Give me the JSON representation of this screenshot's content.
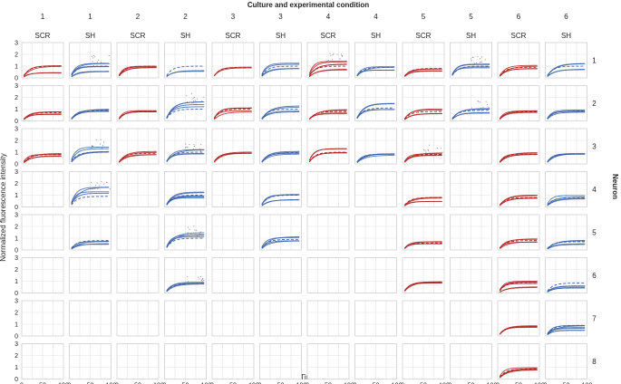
{
  "chart_data": {
    "type": "line",
    "title": "Culture and experimental condition",
    "xlabel": "Time",
    "ylabel": "Normalized fluorescence intensity",
    "right_label": "Neuron",
    "xlim": [
      0,
      100
    ],
    "ylim": [
      0,
      3
    ],
    "x_ticks": [
      0,
      50,
      100
    ],
    "x_tick_labels": [
      "0",
      "50",
      "100"
    ],
    "y_ticks": [
      0,
      1,
      2,
      3
    ],
    "y_tick_labels": [
      "0",
      "1",
      "2",
      "3"
    ],
    "grid": true,
    "colors": {
      "SCR": "#b22222",
      "SH": "#3a5fa8",
      "grid": "#e3e3e3",
      "panel_border": "#cfcfcf",
      "dots": "#8a8a8a"
    },
    "columns": [
      {
        "culture": "1",
        "condition": "SCR"
      },
      {
        "culture": "1",
        "condition": "SH"
      },
      {
        "culture": "2",
        "condition": "SCR"
      },
      {
        "culture": "2",
        "condition": "SH"
      },
      {
        "culture": "3",
        "condition": "SCR"
      },
      {
        "culture": "3",
        "condition": "SH"
      },
      {
        "culture": "4",
        "condition": "SCR"
      },
      {
        "culture": "4",
        "condition": "SH"
      },
      {
        "culture": "5",
        "condition": "SCR"
      },
      {
        "culture": "5",
        "condition": "SH"
      },
      {
        "culture": "6",
        "condition": "SCR"
      },
      {
        "culture": "6",
        "condition": "SH"
      }
    ],
    "rows": [
      "1",
      "2",
      "3",
      "4",
      "5",
      "6",
      "7",
      "8"
    ],
    "curve_model": "y = plateau * (1 - exp(-x / 15))",
    "panels": [
      {
        "row": 1,
        "col": 1,
        "plateau_means": [
          0.45,
          1.05
        ],
        "dashed_plateau": 1.0
      },
      {
        "row": 1,
        "col": 2,
        "plateau_means": [
          0.55,
          0.95,
          1.2
        ],
        "dashed_plateau": 1.0,
        "scatter": true
      },
      {
        "row": 1,
        "col": 3,
        "plateau_means": [
          0.85,
          1.0
        ],
        "dashed_plateau": 1.0
      },
      {
        "row": 1,
        "col": 4,
        "plateau_means": [
          0.6
        ],
        "dashed_plateau": 1.0
      },
      {
        "row": 1,
        "col": 5,
        "plateau_means": [
          0.85
        ],
        "dashed_plateau": 0.9
      },
      {
        "row": 1,
        "col": 6,
        "plateau_means": [
          0.8,
          1.2
        ],
        "dashed_plateau": 1.0
      },
      {
        "row": 1,
        "col": 7,
        "plateau_means": [
          0.7,
          1.1,
          1.4
        ],
        "dashed_plateau": 1.0,
        "scatter": true
      },
      {
        "row": 1,
        "col": 8,
        "plateau_means": [
          0.7,
          0.9
        ],
        "dashed_plateau": 0.9
      },
      {
        "row": 1,
        "col": 9,
        "plateau_means": [
          0.6,
          0.8
        ],
        "dashed_plateau": 0.8
      },
      {
        "row": 1,
        "col": 10,
        "plateau_means": [
          0.9,
          1.15
        ],
        "dashed_plateau": 1.0,
        "scatter": true
      },
      {
        "row": 1,
        "col": 11,
        "plateau_means": [
          0.75,
          1.0
        ],
        "dashed_plateau": 0.9
      },
      {
        "row": 1,
        "col": 12,
        "plateau_means": [
          0.7,
          1.2
        ],
        "dashed_plateau": 1.0
      },
      {
        "row": 2,
        "col": 1,
        "plateau_means": [
          0.55,
          0.75
        ],
        "dashed_plateau": 0.7
      },
      {
        "row": 2,
        "col": 2,
        "plateau_means": [
          0.8,
          1.0
        ],
        "dashed_plateau": 0.9
      },
      {
        "row": 2,
        "col": 3,
        "plateau_means": [
          0.75,
          0.9
        ],
        "dashed_plateau": 0.8
      },
      {
        "row": 2,
        "col": 4,
        "plateau_means": [
          1.3,
          1.7
        ],
        "dashed_plateau": 1.0,
        "scatter": true
      },
      {
        "row": 2,
        "col": 5,
        "plateau_means": [
          0.8,
          1.1
        ],
        "dashed_plateau": 1.0
      },
      {
        "row": 2,
        "col": 6,
        "plateau_means": [
          0.8,
          1.2
        ],
        "dashed_plateau": 1.0
      },
      {
        "row": 2,
        "col": 7,
        "plateau_means": [
          0.65,
          0.95
        ],
        "dashed_plateau": 0.8
      },
      {
        "row": 2,
        "col": 8,
        "plateau_means": [
          1.0,
          1.4
        ],
        "dashed_plateau": 1.1
      },
      {
        "row": 2,
        "col": 9,
        "plateau_means": [
          0.65,
          0.95
        ],
        "dashed_plateau": 0.8
      },
      {
        "row": 2,
        "col": 10,
        "plateau_means": [
          0.7,
          1.0
        ],
        "dashed_plateau": 0.9,
        "scatter": true
      },
      {
        "row": 2,
        "col": 11,
        "plateau_means": [
          0.75,
          0.85
        ],
        "dashed_plateau": 0.8
      },
      {
        "row": 2,
        "col": 12,
        "plateau_means": [
          0.8,
          0.9
        ],
        "dashed_plateau": 0.85
      },
      {
        "row": 3,
        "col": 1,
        "plateau_means": [
          0.65,
          0.85
        ],
        "dashed_plateau": 0.8
      },
      {
        "row": 3,
        "col": 2,
        "plateau_means": [
          1.0,
          1.4
        ],
        "dashed_plateau": 1.0,
        "scatter": true
      },
      {
        "row": 3,
        "col": 3,
        "plateau_means": [
          0.8,
          1.0
        ],
        "dashed_plateau": 0.9
      },
      {
        "row": 3,
        "col": 4,
        "plateau_means": [
          0.85,
          1.2
        ],
        "dashed_plateau": 1.0,
        "scatter": true
      },
      {
        "row": 3,
        "col": 5,
        "plateau_means": [
          0.85,
          0.95
        ],
        "dashed_plateau": 0.9
      },
      {
        "row": 3,
        "col": 6,
        "plateau_means": [
          0.85,
          1.05
        ],
        "dashed_plateau": 0.95
      },
      {
        "row": 3,
        "col": 7,
        "plateau_means": [
          1.0,
          1.3
        ],
        "dashed_plateau": 1.0
      },
      {
        "row": 3,
        "col": 8,
        "plateau_means": [
          0.8,
          0.9
        ],
        "dashed_plateau": 0.85
      },
      {
        "row": 3,
        "col": 9,
        "plateau_means": [
          0.7,
          0.9
        ],
        "dashed_plateau": 0.8,
        "scatter": true
      },
      {
        "row": 3,
        "col": 11,
        "plateau_means": [
          0.8,
          0.9
        ],
        "dashed_plateau": 0.85
      },
      {
        "row": 3,
        "col": 12,
        "plateau_means": [
          0.8,
          0.9
        ],
        "dashed_plateau": 0.85
      },
      {
        "row": 4,
        "col": 2,
        "plateau_means": [
          1.2,
          1.6
        ],
        "dashed_plateau": 0.9,
        "scatter": true
      },
      {
        "row": 4,
        "col": 4,
        "plateau_means": [
          0.8,
          1.0,
          1.3
        ],
        "dashed_plateau": 1.0
      },
      {
        "row": 4,
        "col": 6,
        "plateau_means": [
          0.6,
          1.0
        ],
        "dashed_plateau": 1.0
      },
      {
        "row": 4,
        "col": 9,
        "plateau_means": [
          0.5,
          0.8
        ],
        "dashed_plateau": 0.8
      },
      {
        "row": 4,
        "col": 11,
        "plateau_means": [
          0.75,
          0.95
        ],
        "dashed_plateau": 0.8
      },
      {
        "row": 4,
        "col": 12,
        "plateau_means": [
          0.7,
          0.9
        ],
        "dashed_plateau": 0.8
      },
      {
        "row": 5,
        "col": 2,
        "plateau_means": [
          0.5,
          0.7
        ],
        "dashed_plateau": 0.8
      },
      {
        "row": 5,
        "col": 4,
        "plateau_means": [
          1.2,
          1.4
        ],
        "dashed_plateau": 1.0,
        "scatter": true
      },
      {
        "row": 5,
        "col": 6,
        "plateau_means": [
          0.8,
          1.1
        ],
        "dashed_plateau": 0.9
      },
      {
        "row": 5,
        "col": 9,
        "plateau_means": [
          0.5,
          0.7
        ],
        "dashed_plateau": 0.6
      },
      {
        "row": 5,
        "col": 11,
        "plateau_means": [
          0.7,
          0.9
        ],
        "dashed_plateau": 0.8
      },
      {
        "row": 5,
        "col": 12,
        "plateau_means": [
          0.5,
          0.8
        ],
        "dashed_plateau": 0.7
      },
      {
        "row": 6,
        "col": 4,
        "plateau_means": [
          0.8,
          0.9
        ],
        "dashed_plateau": 0.8,
        "scatter": true
      },
      {
        "row": 6,
        "col": 9,
        "plateau_means": [
          0.85,
          0.95
        ],
        "dashed_plateau": 0.9
      },
      {
        "row": 6,
        "col": 11,
        "plateau_means": [
          0.5,
          0.85,
          0.95
        ],
        "dashed_plateau": 0.9
      },
      {
        "row": 6,
        "col": 12,
        "plateau_means": [
          0.45,
          0.6
        ],
        "dashed_plateau": 0.85
      },
      {
        "row": 7,
        "col": 11,
        "plateau_means": [
          0.75,
          0.85
        ],
        "dashed_plateau": 0.8
      },
      {
        "row": 7,
        "col": 12,
        "plateau_means": [
          0.5,
          0.7,
          0.9
        ],
        "dashed_plateau": 0.9
      },
      {
        "row": 8,
        "col": 11,
        "plateau_means": [
          0.8,
          0.9
        ],
        "dashed_plateau": 0.85
      }
    ]
  }
}
